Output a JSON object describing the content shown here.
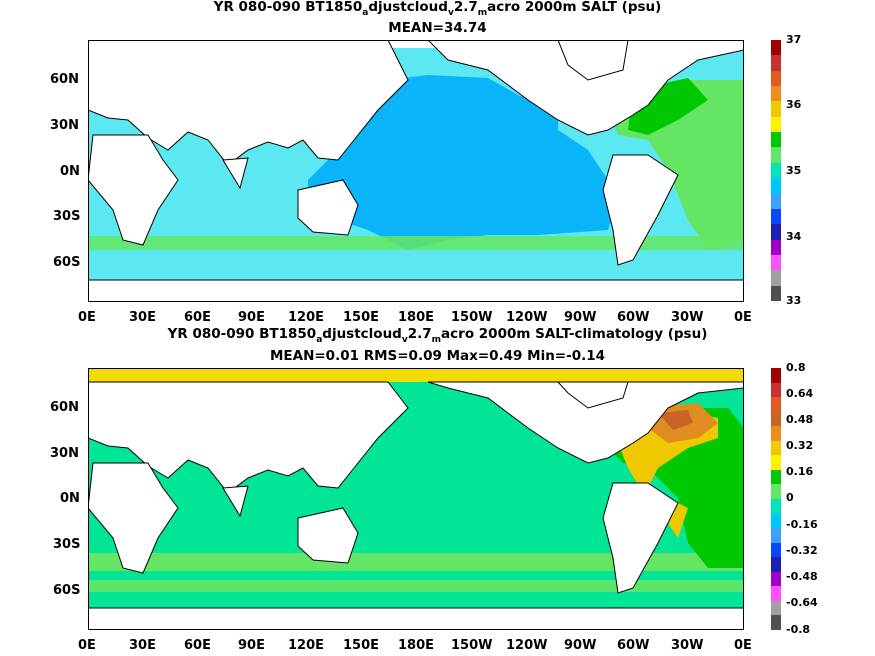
{
  "top": {
    "title_pre": "YR 080-090 BT1850",
    "sub1": "a",
    "mid1": "djustcloud",
    "sub2": "v",
    "mid2": "2.7",
    "sub3": "m",
    "title_post": "acro 2000m SALT (psu)",
    "stats": "MEAN=34.74",
    "colorbar_labels": [
      "37",
      "36",
      "35",
      "34",
      "33"
    ],
    "colorbar_colors": [
      "#a00000",
      "#c83232",
      "#e05a1e",
      "#f08c1e",
      "#f0c800",
      "#fff000",
      "#00c800",
      "#64e664",
      "#00e6b4",
      "#00c8ff",
      "#3ca0ff",
      "#0a46ff",
      "#1e1eb4",
      "#a000c8",
      "#ff50ff",
      "#a0a0a0",
      "#505050"
    ]
  },
  "bottom": {
    "title_pre": "YR 080-090 BT1850",
    "sub1": "a",
    "mid1": "djustcloud",
    "sub2": "v",
    "mid2": "2.7",
    "sub3": "m",
    "title_post": "acro 2000m SALT-climatology (psu)",
    "stats": "MEAN=0.01   RMS=0.09   Max=0.49   Min=-0.14",
    "colorbar_labels": [
      "0.8",
      "0.64",
      "0.48",
      "0.32",
      "0.16",
      "0",
      "-0.16",
      "-0.32",
      "-0.48",
      "-0.64",
      "-0.8"
    ],
    "colorbar_colors": [
      "#a00000",
      "#c83232",
      "#e05a1e",
      "#c86428",
      "#f08c1e",
      "#f0c800",
      "#fff000",
      "#00c800",
      "#64e664",
      "#00e6b4",
      "#00c8ff",
      "#3ca0ff",
      "#0a46ff",
      "#1e1eb4",
      "#a000c8",
      "#ff50ff",
      "#a0a0a0",
      "#505050"
    ]
  },
  "lat_labels": [
    "60N",
    "30N",
    "0N",
    "30S",
    "60S"
  ],
  "lon_labels": [
    "0E",
    "30E",
    "60E",
    "90E",
    "120E",
    "150E",
    "180E",
    "150W",
    "120W",
    "90W",
    "60W",
    "30W",
    "0E"
  ]
}
